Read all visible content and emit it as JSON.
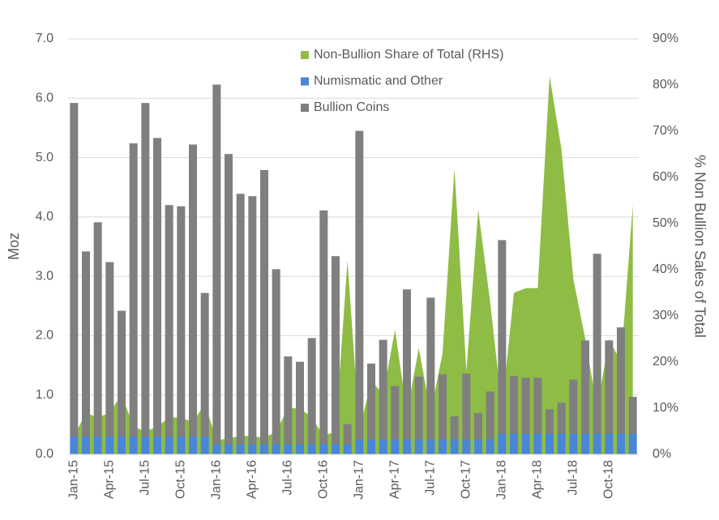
{
  "chart_data": {
    "type": "bar",
    "stacked": true,
    "y_label": "Moz",
    "y2_label": "% Non Bullion Sales of Total",
    "categories": [
      "Jan-15",
      null,
      null,
      "Apr-15",
      null,
      null,
      "Jul-15",
      null,
      null,
      "Oct-15",
      null,
      null,
      "Jan-16",
      null,
      null,
      "Apr-16",
      null,
      null,
      "Jul-16",
      null,
      null,
      "Oct-16",
      null,
      null,
      "Jan-17",
      null,
      null,
      "Apr-17",
      null,
      null,
      "Jul-17",
      null,
      null,
      "Oct-17",
      null,
      null,
      "Jan-18",
      null,
      null,
      "Apr-18",
      null,
      null,
      "Jul-18",
      null,
      null,
      "Oct-18",
      null,
      null
    ],
    "series": [
      {
        "name": "Non-Bullion Share of Total (RHS)",
        "type": "area",
        "axis": "y2",
        "color": "#8fbc45",
        "values": [
          4,
          9,
          8,
          9,
          13,
          6,
          5,
          6,
          8,
          8,
          7,
          11,
          3,
          3.5,
          4,
          4,
          3.5,
          5,
          10,
          10,
          8,
          4,
          5,
          42,
          5,
          16,
          13,
          27,
          9,
          23,
          9,
          22,
          62,
          18,
          53,
          33,
          10,
          35,
          36,
          36,
          82,
          66,
          38,
          25,
          10,
          25,
          20,
          54
        ]
      },
      {
        "name": "Numismatic and Other",
        "type": "bar",
        "color": "#4a86d8",
        "values": [
          0.3,
          0.3,
          0.3,
          0.3,
          0.3,
          0.3,
          0.3,
          0.3,
          0.3,
          0.3,
          0.3,
          0.3,
          0.17,
          0.17,
          0.17,
          0.17,
          0.17,
          0.17,
          0.17,
          0.17,
          0.17,
          0.17,
          0.17,
          0.17,
          0.25,
          0.25,
          0.25,
          0.25,
          0.25,
          0.25,
          0.25,
          0.25,
          0.25,
          0.25,
          0.25,
          0.25,
          0.35,
          0.35,
          0.35,
          0.35,
          0.35,
          0.35,
          0.35,
          0.35,
          0.35,
          0.35,
          0.35,
          0.35
        ]
      },
      {
        "name": "Bullion Coins",
        "type": "bar",
        "color": "#7f7f7f",
        "values": [
          5.62,
          3.12,
          3.61,
          2.94,
          2.12,
          4.94,
          5.62,
          5.03,
          3.9,
          3.88,
          4.92,
          2.42,
          6.06,
          4.89,
          4.22,
          4.18,
          4.62,
          2.95,
          1.48,
          1.39,
          1.79,
          3.94,
          3.17,
          0.34,
          5.2,
          1.28,
          1.68,
          0.9,
          2.53,
          1.06,
          2.39,
          1.1,
          0.39,
          1.11,
          0.45,
          0.81,
          3.26,
          0.97,
          0.94,
          0.94,
          0.41,
          0.52,
          0.91,
          1.57,
          3.03,
          1.57,
          1.79,
          0.62
        ]
      }
    ],
    "ylim": [
      0,
      7
    ],
    "yticks": [
      {
        "value": 0,
        "label": "0.0"
      },
      {
        "value": 1,
        "label": "1.0"
      },
      {
        "value": 2,
        "label": "2.0"
      },
      {
        "value": 3,
        "label": "3.0"
      },
      {
        "value": 4,
        "label": "4.0"
      },
      {
        "value": 5,
        "label": "5.0"
      },
      {
        "value": 6,
        "label": "6.0"
      },
      {
        "value": 7,
        "label": "7.0"
      }
    ],
    "y2lim": [
      0,
      90
    ],
    "y2ticks": [
      {
        "value": 0,
        "label": "0%"
      },
      {
        "value": 10,
        "label": "10%"
      },
      {
        "value": 20,
        "label": "20%"
      },
      {
        "value": 30,
        "label": "30%"
      },
      {
        "value": 40,
        "label": "40%"
      },
      {
        "value": 50,
        "label": "50%"
      },
      {
        "value": 60,
        "label": "60%"
      },
      {
        "value": 70,
        "label": "70%"
      },
      {
        "value": 80,
        "label": "80%"
      },
      {
        "value": 90,
        "label": "90%"
      }
    ],
    "grid": true
  }
}
